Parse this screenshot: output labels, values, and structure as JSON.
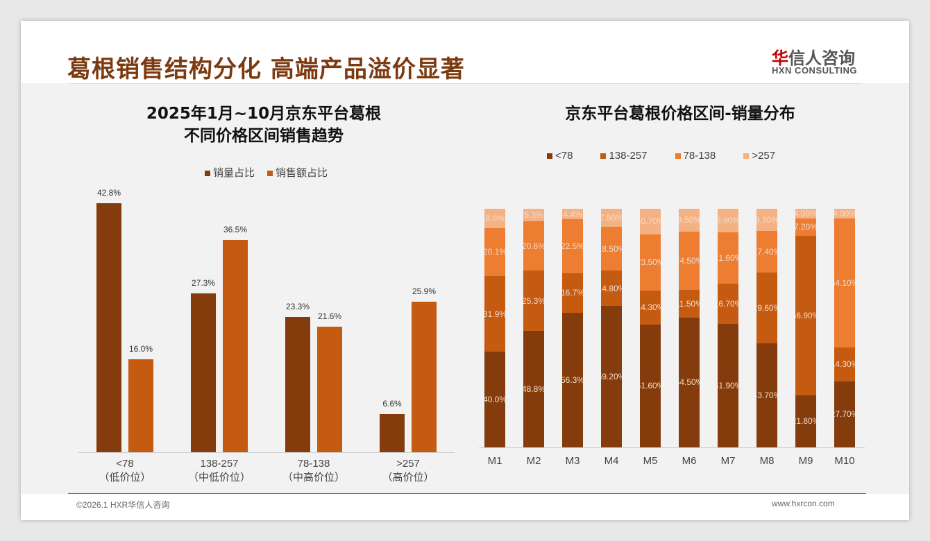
{
  "header": {
    "title": "葛根销售结构分化 高端产品溢价显著",
    "logo_cn_red": "华",
    "logo_cn": "信人咨询",
    "logo_en": "HXN CONSULTING"
  },
  "footer": {
    "copyright": "©2026.1 HXR华信人咨询",
    "url": "www.hxrcon.com"
  },
  "chart_data": [
    {
      "type": "bar",
      "title_line1": "2025年1月~10月京东平台葛根",
      "title_line2": "不同价格区间销售趋势",
      "categories": [
        "<78",
        "138-257",
        "78-138",
        ">257"
      ],
      "sublabels": [
        "（低价位）",
        "（中低价位）",
        "（中高价位）",
        "（高价位）"
      ],
      "series": [
        {
          "name": "销量占比",
          "color": "#843c0c",
          "values": [
            42.8,
            27.3,
            23.3,
            6.6
          ]
        },
        {
          "name": "销售额占比",
          "color": "#c55a11",
          "values": [
            16.0,
            36.5,
            21.6,
            25.9
          ]
        }
      ],
      "ylim": [
        0,
        45
      ],
      "unit": "%"
    },
    {
      "type": "bar",
      "stacked": true,
      "title": "京东平台葛根价格区间-销量分布",
      "categories": [
        "M1",
        "M2",
        "M3",
        "M4",
        "M5",
        "M6",
        "M7",
        "M8",
        "M9",
        "M10"
      ],
      "series": [
        {
          "name": "<78",
          "color": "#843c0c",
          "values": [
            40.0,
            48.8,
            56.3,
            59.2,
            51.6,
            54.5,
            51.9,
            43.7,
            21.8,
            27.7
          ],
          "labels": [
            "40.0%",
            "48.8%",
            "56.3%",
            "59.20%",
            "51.60%",
            "54.50%",
            "51.90%",
            "43.70%",
            "21.80%",
            "27.70%"
          ]
        },
        {
          "name": "138-257",
          "color": "#c55a11",
          "values": [
            31.9,
            25.3,
            16.7,
            14.8,
            14.3,
            11.5,
            16.7,
            29.6,
            66.9,
            14.3
          ],
          "labels": [
            "31.9%",
            "25.3%",
            "16.7%",
            "14.80%",
            "14.30%",
            "11.50%",
            "16.70%",
            "29.60%",
            "66.90%",
            "14.30%"
          ]
        },
        {
          "name": "78-138",
          "color": "#ed7d31",
          "values": [
            20.1,
            20.6,
            22.5,
            18.5,
            23.5,
            24.5,
            21.6,
            17.4,
            7.2,
            54.1
          ],
          "labels": [
            "20.1%",
            "20.6%",
            "22.5%",
            "18.50%",
            "23.50%",
            "24.50%",
            "21.60%",
            "17.40%",
            "7.20%",
            "54.10%"
          ]
        },
        {
          "name": ">257",
          "color": "#f4b183",
          "values": [
            8.0,
            5.3,
            4.4,
            7.5,
            10.7,
            9.5,
            9.9,
            9.3,
            4.0,
            4.0
          ],
          "labels": [
            "8.0%",
            "5.3%",
            "4.4%",
            "7.50%",
            "10.70%",
            "9.50%",
            "9.90%",
            "9.30%",
            "4.00%",
            "4.00%"
          ]
        }
      ],
      "ylim": [
        0,
        100
      ]
    }
  ]
}
